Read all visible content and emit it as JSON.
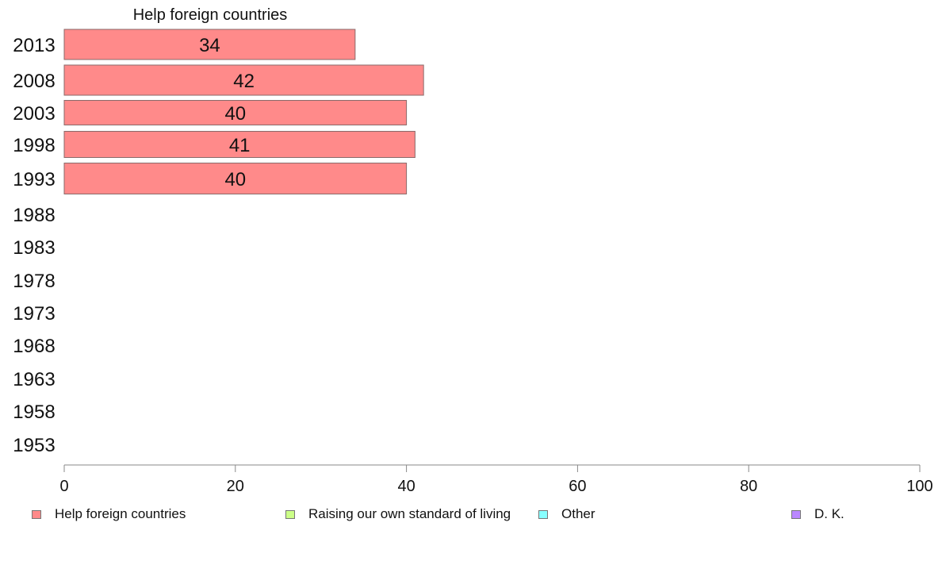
{
  "chart_data": {
    "type": "bar",
    "orientation": "horizontal",
    "title": "Help foreign countries",
    "categories": [
      "2013",
      "2008",
      "2003",
      "1998",
      "1993",
      "1988",
      "1983",
      "1978",
      "1973",
      "1968",
      "1963",
      "1958",
      "1953"
    ],
    "series": [
      {
        "name": "Help foreign countries",
        "color": "#ff8a8a",
        "values": [
          34,
          42,
          40,
          41,
          40,
          null,
          null,
          null,
          null,
          null,
          null,
          null,
          null
        ]
      }
    ],
    "xlim": [
      0,
      100
    ],
    "xticks": [
      0,
      20,
      40,
      60,
      80,
      100
    ],
    "grid": false,
    "legend_position": "bottom",
    "legend": [
      {
        "label": "Help foreign countries",
        "color": "#ff8a8a"
      },
      {
        "label": "Raising our own standard of living",
        "color": "#ccff88"
      },
      {
        "label": "Other",
        "color": "#88ffff"
      },
      {
        "label": "D. K.",
        "color": "#bb88ff"
      }
    ]
  }
}
